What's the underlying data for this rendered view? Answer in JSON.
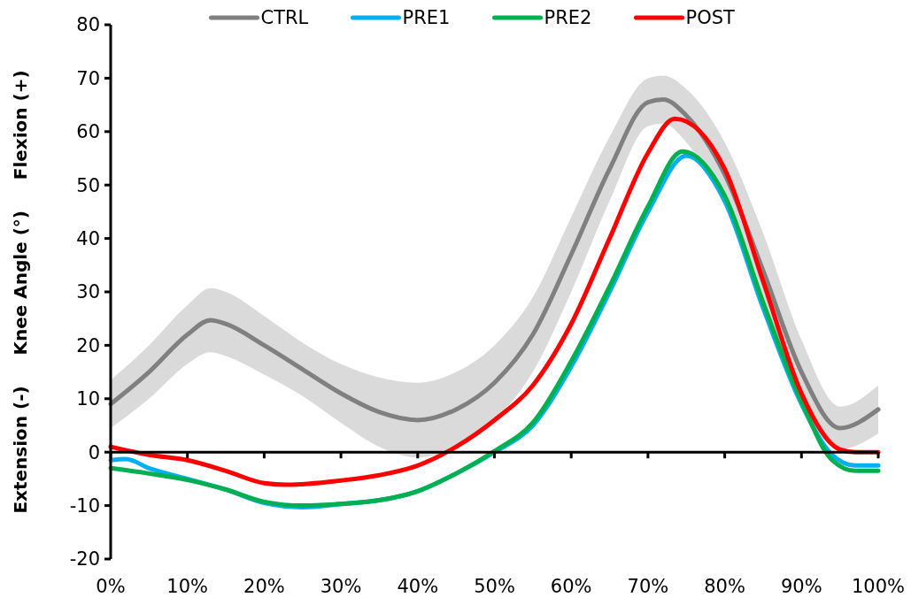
{
  "chart_data": {
    "type": "line",
    "ylabel": "Extension (-)     Knee Angle (°)     Flexion (+)",
    "xlim": [
      0,
      100
    ],
    "ylim": [
      -20,
      80
    ],
    "xticks": [
      {
        "value": 0,
        "label": "0%"
      },
      {
        "value": 10,
        "label": "10%"
      },
      {
        "value": 20,
        "label": "20%"
      },
      {
        "value": 30,
        "label": "30%"
      },
      {
        "value": 40,
        "label": "40%"
      },
      {
        "value": 50,
        "label": "50%"
      },
      {
        "value": 60,
        "label": "60%"
      },
      {
        "value": 70,
        "label": "70%"
      },
      {
        "value": 80,
        "label": "80%"
      },
      {
        "value": 90,
        "label": "90%"
      },
      {
        "value": 100,
        "label": "100%"
      }
    ],
    "yticks": [
      -20,
      -10,
      0,
      10,
      20,
      30,
      40,
      50,
      60,
      70,
      80
    ],
    "legend": "top",
    "marker": "none",
    "line_style": "solid",
    "series": [
      {
        "name": "CTRL",
        "color": "#808080",
        "x": [
          0,
          5,
          10,
          13,
          15,
          20,
          25,
          30,
          35,
          40,
          45,
          50,
          55,
          60,
          65,
          70,
          72,
          75,
          80,
          85,
          90,
          95,
          100
        ],
        "values": [
          9,
          15,
          22,
          24.7,
          24,
          20,
          15.5,
          11,
          7.5,
          6,
          8,
          13,
          22,
          37,
          53,
          65.5,
          66,
          63,
          52,
          34,
          15,
          4.5,
          8
        ],
        "lower": [
          4.5,
          10,
          16.5,
          18.7,
          18,
          14.5,
          10.5,
          5.5,
          1,
          -1,
          1,
          6,
          15,
          30,
          47,
          61,
          61.5,
          58,
          46,
          27,
          9,
          0.5,
          3.5
        ],
        "upper": [
          13.5,
          20,
          27.5,
          30.7,
          30,
          25.5,
          20.5,
          16.5,
          14,
          13,
          15,
          20,
          29,
          44,
          59,
          70,
          70.5,
          68,
          58,
          41,
          21,
          8.5,
          12.5
        ]
      },
      {
        "name": "PRE1",
        "color": "#00b0f0",
        "x": [
          0,
          2,
          5,
          10,
          15,
          20,
          25,
          30,
          35,
          40,
          45,
          50,
          55,
          60,
          65,
          70,
          75,
          80,
          85,
          90,
          94,
          97,
          100
        ],
        "values": [
          -1.5,
          -1.3,
          -3,
          -5,
          -7,
          -9.5,
          -10.3,
          -9.7,
          -9,
          -7.3,
          -4,
          0,
          5,
          16,
          30,
          45,
          55.5,
          47,
          27,
          9,
          -0.5,
          -2.5,
          -2.5
        ]
      },
      {
        "name": "PRE2",
        "color": "#00b050",
        "x": [
          0,
          5,
          10,
          15,
          20,
          25,
          30,
          35,
          40,
          45,
          50,
          55,
          60,
          65,
          70,
          74.5,
          80,
          85,
          90,
          94,
          97,
          100
        ],
        "values": [
          -3,
          -4,
          -5.2,
          -7,
          -9.3,
          -10,
          -9.7,
          -9,
          -7.3,
          -4,
          0.2,
          5.5,
          17,
          31,
          46,
          56.3,
          48,
          28,
          9.5,
          -1.5,
          -3.5,
          -3.5
        ]
      },
      {
        "name": "POST",
        "color": "#ff0000",
        "x": [
          0,
          5,
          10,
          15,
          20,
          23,
          30,
          35,
          40,
          45,
          50,
          55,
          60,
          65,
          70,
          73.5,
          80,
          85,
          90,
          95,
          97,
          100
        ],
        "values": [
          1,
          -0.5,
          -1.5,
          -3.5,
          -5.8,
          -6.1,
          -5.3,
          -4.3,
          -2.5,
          1,
          6,
          12.5,
          24,
          40,
          56,
          62.4,
          53,
          32,
          11,
          0.5,
          0,
          0
        ]
      }
    ]
  }
}
